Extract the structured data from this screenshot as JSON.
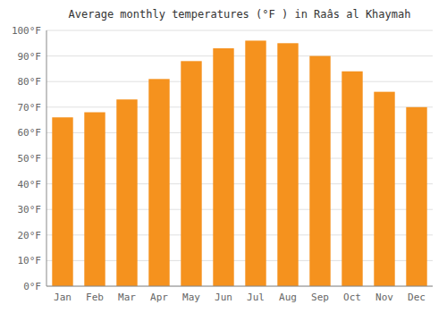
{
  "chart_data": {
    "type": "bar",
    "title": "Average monthly temperatures (°F ) in Raâs al Khaymah",
    "categories": [
      "Jan",
      "Feb",
      "Mar",
      "Apr",
      "May",
      "Jun",
      "Jul",
      "Aug",
      "Sep",
      "Oct",
      "Nov",
      "Dec"
    ],
    "values": [
      66,
      68,
      73,
      81,
      88,
      93,
      96,
      95,
      90,
      84,
      76,
      70
    ],
    "color": "#F5921E",
    "ylim": [
      0,
      100
    ],
    "yticks": [
      {
        "value": 0,
        "label": "0°F"
      },
      {
        "value": 10,
        "label": "10°F"
      },
      {
        "value": 20,
        "label": "20°F"
      },
      {
        "value": 30,
        "label": "30°F"
      },
      {
        "value": 40,
        "label": "40°F"
      },
      {
        "value": 50,
        "label": "50°F"
      },
      {
        "value": 60,
        "label": "60°F"
      },
      {
        "value": 70,
        "label": "70°F"
      },
      {
        "value": 80,
        "label": "80°F"
      },
      {
        "value": 90,
        "label": "90°F"
      },
      {
        "value": 100,
        "label": "100°F"
      }
    ],
    "grid": true
  }
}
